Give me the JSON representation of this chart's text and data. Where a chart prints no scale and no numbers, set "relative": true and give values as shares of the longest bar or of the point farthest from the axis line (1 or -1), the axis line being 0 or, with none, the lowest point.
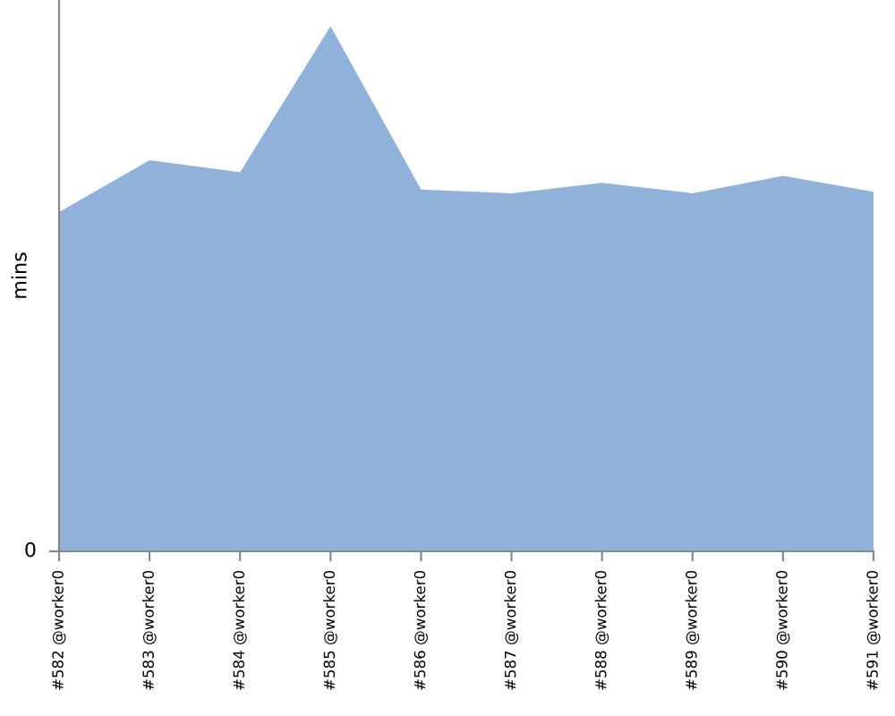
{
  "chart_data": {
    "type": "area",
    "relative": true,
    "ylabel": "mins",
    "annotations": [
      "0"
    ],
    "categories": [
      "#582 @worker0",
      "#583 @worker0",
      "#584 @worker0",
      "#585 @worker0",
      "#586 @worker0",
      "#587 @worker0",
      "#588 @worker0",
      "#589 @worker0",
      "#590 @worker0",
      "#591 @worker0"
    ],
    "series": [
      {
        "color": "#8fb1da",
        "values": [
          0.646,
          0.745,
          0.722,
          1,
          0.689,
          0.682,
          0.702,
          0.682,
          0.715,
          0.685
        ]
      }
    ],
    "grid": false,
    "legend": false
  }
}
